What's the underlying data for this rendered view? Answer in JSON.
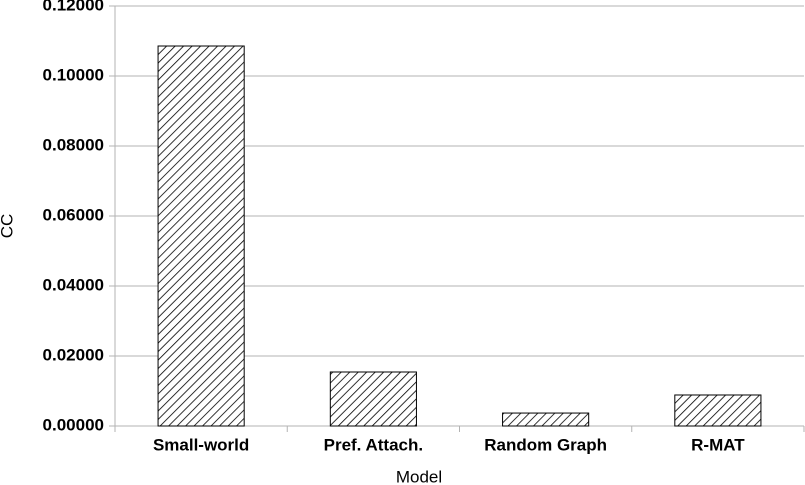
{
  "chart_data": {
    "type": "bar",
    "x_label": "Model",
    "y_label": "CC",
    "categories": [
      "Small-world",
      "Pref. Attach.",
      "Random Graph",
      "R-MAT"
    ],
    "values": [
      0.10857,
      0.01543,
      0.0037,
      0.00886
    ],
    "color": "#000000",
    "ylim": [
      0,
      0.12
    ],
    "yticks": [
      {
        "value": 0,
        "label": "0.00000"
      },
      {
        "value": 0.02,
        "label": "0.02000"
      },
      {
        "value": 0.04,
        "label": "0.04000"
      },
      {
        "value": 0.06,
        "label": "0.06000"
      },
      {
        "value": 0.08,
        "label": "0.08000"
      },
      {
        "value": 0.1,
        "label": "0.10000"
      },
      {
        "value": 0.12,
        "label": "0.12000"
      }
    ],
    "grid": true
  }
}
